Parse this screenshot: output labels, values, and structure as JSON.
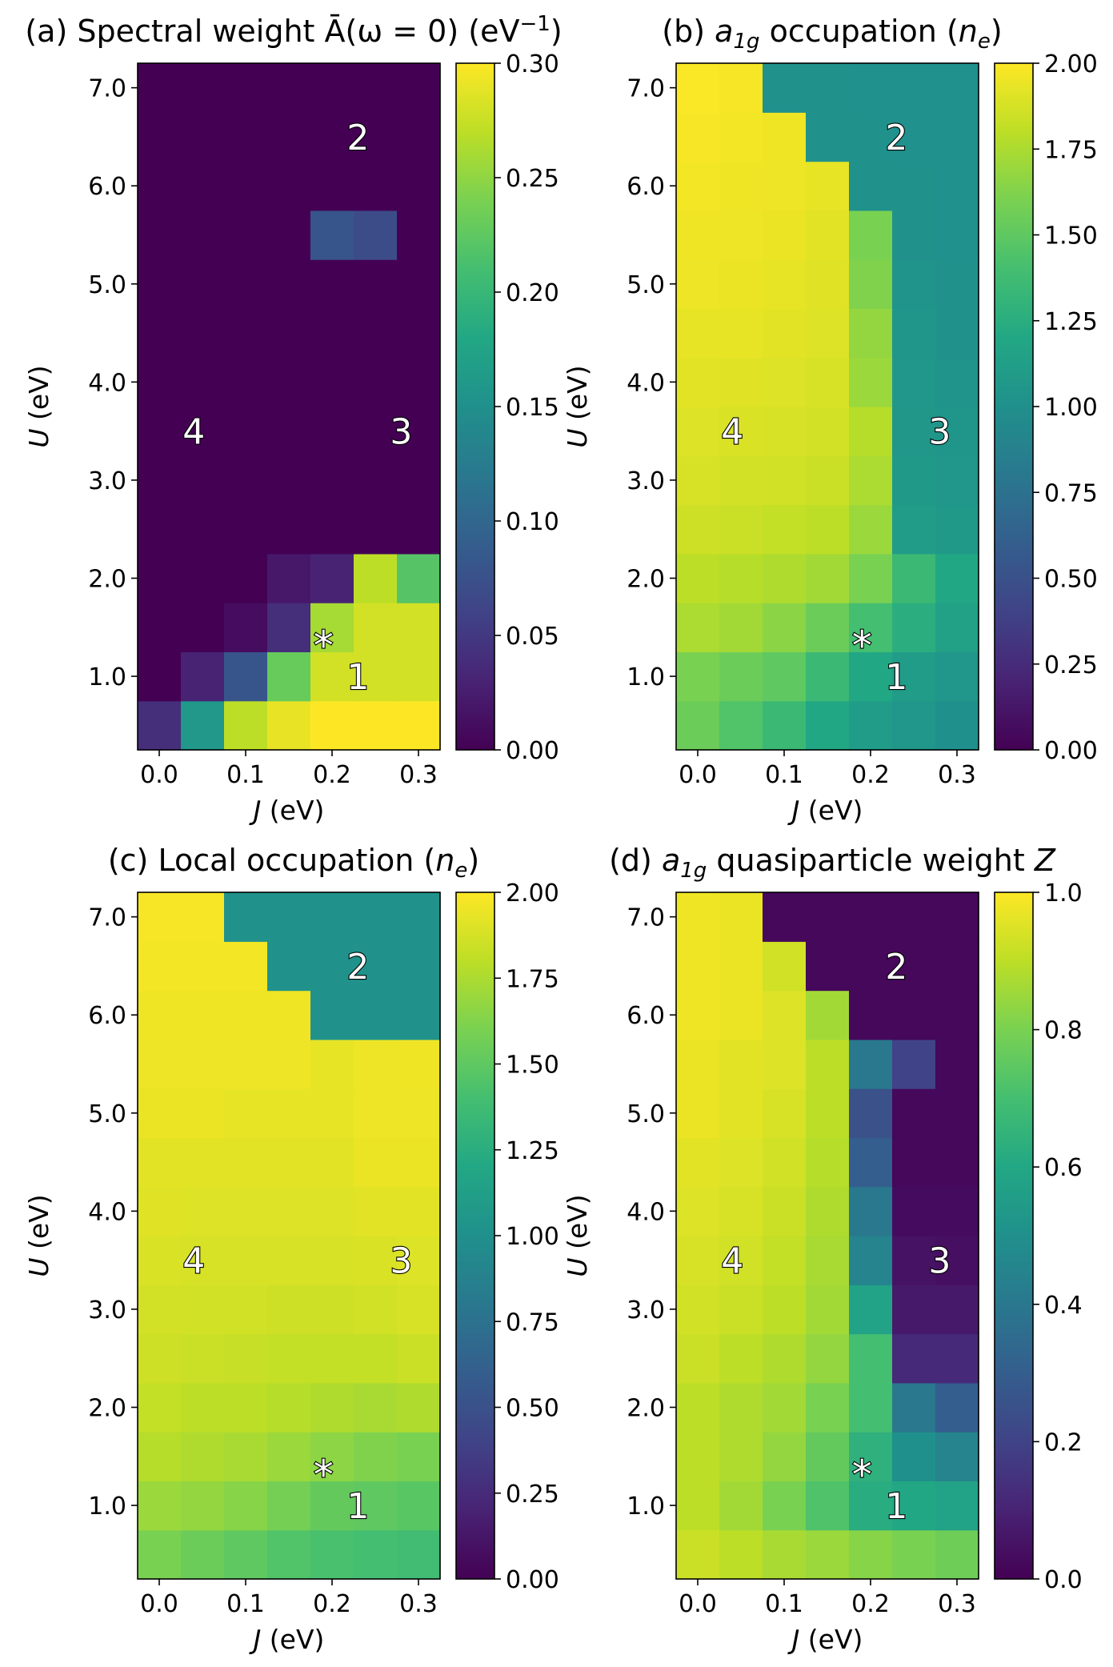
{
  "chart_data": [
    {
      "type": "heatmap",
      "title_prefix": "(a) Spectral weight ",
      "title_symbol": "Ā(ω = 0)",
      "title_suffix": " (eV",
      "title_sup": "−1",
      "title_end": ")",
      "xlabel_var": "J",
      "xlabel_unit": " (eV)",
      "ylabel_var": "U",
      "ylabel_unit": " (eV)",
      "x_values": [
        0.0,
        0.05,
        0.1,
        0.15,
        0.2,
        0.25,
        0.3
      ],
      "y_values": [
        0.5,
        1.0,
        1.5,
        2.0,
        2.5,
        3.0,
        3.5,
        4.0,
        4.5,
        5.0,
        5.5,
        6.0,
        6.5,
        7.0
      ],
      "x_ticks": [
        "0.0",
        "0.1",
        "0.2",
        "0.3"
      ],
      "y_ticks": [
        "1.0",
        "2.0",
        "3.0",
        "4.0",
        "5.0",
        "6.0",
        "7.0"
      ],
      "colorbar_range": [
        0.0,
        0.3
      ],
      "colorbar_ticks": [
        "0.00",
        "0.05",
        "0.10",
        "0.15",
        "0.20",
        "0.25",
        "0.30"
      ],
      "values": [
        [
          0.04,
          0.16,
          0.27,
          0.29,
          0.3,
          0.3,
          0.3
        ],
        [
          0.0,
          0.03,
          0.08,
          0.23,
          0.28,
          0.28,
          0.28
        ],
        [
          0.0,
          0.0,
          0.01,
          0.04,
          0.26,
          0.28,
          0.28
        ],
        [
          0.0,
          0.0,
          0.0,
          0.02,
          0.03,
          0.27,
          0.22
        ],
        [
          0.0,
          0.0,
          0.0,
          0.0,
          0.0,
          0.0,
          0.0
        ],
        [
          0.0,
          0.0,
          0.0,
          0.0,
          0.0,
          0.0,
          0.0
        ],
        [
          0.0,
          0.0,
          0.0,
          0.0,
          0.0,
          0.0,
          0.0
        ],
        [
          0.0,
          0.0,
          0.0,
          0.0,
          0.0,
          0.0,
          0.0
        ],
        [
          0.0,
          0.0,
          0.0,
          0.0,
          0.0,
          0.0,
          0.0
        ],
        [
          0.0,
          0.0,
          0.0,
          0.0,
          0.0,
          0.0,
          0.0
        ],
        [
          0.0,
          0.0,
          0.0,
          0.0,
          0.08,
          0.07,
          0.0
        ],
        [
          0.0,
          0.0,
          0.0,
          0.0,
          0.0,
          0.0,
          0.0
        ],
        [
          0.0,
          0.0,
          0.0,
          0.0,
          0.0,
          0.0,
          0.0
        ],
        [
          0.0,
          0.0,
          0.0,
          0.0,
          0.0,
          0.0,
          0.0
        ]
      ],
      "annotations": [
        {
          "text": "1",
          "x": 0.23,
          "y": 1.0
        },
        {
          "text": "2",
          "x": 0.23,
          "y": 6.5
        },
        {
          "text": "3",
          "x": 0.28,
          "y": 3.5
        },
        {
          "text": "4",
          "x": 0.04,
          "y": 3.5
        },
        {
          "text": "*",
          "x": 0.19,
          "y": 1.4
        }
      ]
    },
    {
      "type": "heatmap",
      "title_prefix": "(b) ",
      "title_symbol": "a",
      "title_sub": "1g",
      "title_suffix": " occupation (",
      "title_var": "n",
      "title_var_sub": "e",
      "title_end": ")",
      "xlabel_var": "J",
      "xlabel_unit": " (eV)",
      "ylabel_var": "U",
      "ylabel_unit": " (eV)",
      "x_values": [
        0.0,
        0.05,
        0.1,
        0.15,
        0.2,
        0.25,
        0.3
      ],
      "y_values": [
        0.5,
        1.0,
        1.5,
        2.0,
        2.5,
        3.0,
        3.5,
        4.0,
        4.5,
        5.0,
        5.5,
        6.0,
        6.5,
        7.0
      ],
      "x_ticks": [
        "0.0",
        "0.1",
        "0.2",
        "0.3"
      ],
      "y_ticks": [
        "1.0",
        "2.0",
        "3.0",
        "4.0",
        "5.0",
        "6.0",
        "7.0"
      ],
      "colorbar_range": [
        0.0,
        2.0
      ],
      "colorbar_ticks": [
        "0.00",
        "0.25",
        "0.50",
        "0.75",
        "1.00",
        "1.25",
        "1.50",
        "1.75",
        "2.00"
      ],
      "values": [
        [
          1.55,
          1.45,
          1.35,
          1.2,
          1.1,
          1.05,
          1.0
        ],
        [
          1.6,
          1.55,
          1.5,
          1.35,
          1.2,
          1.1,
          1.05
        ],
        [
          1.75,
          1.72,
          1.65,
          1.55,
          1.4,
          1.25,
          1.15
        ],
        [
          1.8,
          1.78,
          1.76,
          1.72,
          1.6,
          1.35,
          1.2
        ],
        [
          1.85,
          1.84,
          1.82,
          1.8,
          1.7,
          1.1,
          1.08
        ],
        [
          1.88,
          1.87,
          1.86,
          1.84,
          1.75,
          1.08,
          1.05
        ],
        [
          1.9,
          1.89,
          1.88,
          1.87,
          1.78,
          1.06,
          1.04
        ],
        [
          1.92,
          1.91,
          1.9,
          1.88,
          1.7,
          1.05,
          1.03
        ],
        [
          1.93,
          1.93,
          1.92,
          1.9,
          1.68,
          1.04,
          1.02
        ],
        [
          1.95,
          1.94,
          1.93,
          1.91,
          1.62,
          1.03,
          1.02
        ],
        [
          1.96,
          1.95,
          1.94,
          1.92,
          1.6,
          1.02,
          1.01
        ],
        [
          1.97,
          1.96,
          1.95,
          1.93,
          1.02,
          1.02,
          1.01
        ],
        [
          1.98,
          1.97,
          1.96,
          1.02,
          1.02,
          1.01,
          1.01
        ],
        [
          1.99,
          1.98,
          1.02,
          1.02,
          1.01,
          1.01,
          1.01
        ]
      ],
      "annotations": [
        {
          "text": "1",
          "x": 0.23,
          "y": 1.0
        },
        {
          "text": "2",
          "x": 0.23,
          "y": 6.5
        },
        {
          "text": "3",
          "x": 0.28,
          "y": 3.5
        },
        {
          "text": "4",
          "x": 0.04,
          "y": 3.5
        },
        {
          "text": "*",
          "x": 0.19,
          "y": 1.4
        }
      ]
    },
    {
      "type": "heatmap",
      "title_prefix": "(c) Local occupation (",
      "title_var": "n",
      "title_var_sub": "e",
      "title_end": ")",
      "xlabel_var": "J",
      "xlabel_unit": " (eV)",
      "ylabel_var": "U",
      "ylabel_unit": " (eV)",
      "x_values": [
        0.0,
        0.05,
        0.1,
        0.15,
        0.2,
        0.25,
        0.3
      ],
      "y_values": [
        0.5,
        1.0,
        1.5,
        2.0,
        2.5,
        3.0,
        3.5,
        4.0,
        4.5,
        5.0,
        5.5,
        6.0,
        6.5,
        7.0
      ],
      "x_ticks": [
        "0.0",
        "0.1",
        "0.2",
        "0.3"
      ],
      "y_ticks": [
        "1.0",
        "2.0",
        "3.0",
        "4.0",
        "5.0",
        "6.0",
        "7.0"
      ],
      "colorbar_range": [
        0.0,
        2.0
      ],
      "colorbar_ticks": [
        "0.00",
        "0.25",
        "0.50",
        "0.75",
        "1.00",
        "1.25",
        "1.50",
        "1.75",
        "2.00"
      ],
      "values": [
        [
          1.6,
          1.55,
          1.5,
          1.45,
          1.42,
          1.4,
          1.38
        ],
        [
          1.7,
          1.68,
          1.64,
          1.58,
          1.52,
          1.5,
          1.48
        ],
        [
          1.78,
          1.76,
          1.74,
          1.7,
          1.66,
          1.62,
          1.6
        ],
        [
          1.82,
          1.8,
          1.8,
          1.78,
          1.76,
          1.74,
          1.76
        ],
        [
          1.85,
          1.84,
          1.83,
          1.82,
          1.82,
          1.82,
          1.84
        ],
        [
          1.87,
          1.86,
          1.86,
          1.85,
          1.85,
          1.86,
          1.88
        ],
        [
          1.89,
          1.88,
          1.88,
          1.88,
          1.88,
          1.89,
          1.9
        ],
        [
          1.91,
          1.9,
          1.9,
          1.9,
          1.9,
          1.92,
          1.92
        ],
        [
          1.92,
          1.92,
          1.92,
          1.92,
          1.92,
          1.94,
          1.94
        ],
        [
          1.94,
          1.94,
          1.93,
          1.93,
          1.93,
          1.95,
          1.95
        ],
        [
          1.95,
          1.95,
          1.95,
          1.95,
          1.93,
          1.95,
          1.96
        ],
        [
          1.96,
          1.96,
          1.96,
          1.96,
          1.02,
          1.02,
          1.02
        ],
        [
          1.97,
          1.97,
          1.97,
          1.02,
          1.02,
          1.02,
          1.02
        ],
        [
          1.98,
          1.98,
          1.02,
          1.02,
          1.02,
          1.02,
          1.02
        ]
      ],
      "annotations": [
        {
          "text": "1",
          "x": 0.23,
          "y": 1.0
        },
        {
          "text": "2",
          "x": 0.23,
          "y": 6.5
        },
        {
          "text": "3",
          "x": 0.28,
          "y": 3.5
        },
        {
          "text": "4",
          "x": 0.04,
          "y": 3.5
        },
        {
          "text": "*",
          "x": 0.19,
          "y": 1.4
        }
      ]
    },
    {
      "type": "heatmap",
      "title_prefix": "(d) ",
      "title_symbol": "a",
      "title_sub": "1g",
      "title_suffix": " quasiparticle weight ",
      "title_var": "Z",
      "xlabel_var": "J",
      "xlabel_unit": " (eV)",
      "ylabel_var": "U",
      "ylabel_unit": " (eV)",
      "x_values": [
        0.0,
        0.05,
        0.1,
        0.15,
        0.2,
        0.25,
        0.3
      ],
      "y_values": [
        0.5,
        1.0,
        1.5,
        2.0,
        2.5,
        3.0,
        3.5,
        4.0,
        4.5,
        5.0,
        5.5,
        6.0,
        6.5,
        7.0
      ],
      "x_ticks": [
        "0.0",
        "0.1",
        "0.2",
        "0.3"
      ],
      "y_ticks": [
        "1.0",
        "2.0",
        "3.0",
        "4.0",
        "5.0",
        "6.0",
        "7.0"
      ],
      "colorbar_range": [
        0.0,
        1.0
      ],
      "colorbar_ticks": [
        "0.0",
        "0.2",
        "0.4",
        "0.6",
        "0.8",
        "1.0"
      ],
      "values": [
        [
          0.92,
          0.9,
          0.87,
          0.85,
          0.82,
          0.8,
          0.78
        ],
        [
          0.9,
          0.86,
          0.8,
          0.72,
          0.62,
          0.6,
          0.58
        ],
        [
          0.9,
          0.88,
          0.84,
          0.76,
          0.64,
          0.5,
          0.45
        ],
        [
          0.9,
          0.88,
          0.86,
          0.8,
          0.7,
          0.4,
          0.3
        ],
        [
          0.92,
          0.9,
          0.88,
          0.84,
          0.7,
          0.12,
          0.12
        ],
        [
          0.93,
          0.92,
          0.9,
          0.86,
          0.58,
          0.07,
          0.07
        ],
        [
          0.94,
          0.93,
          0.91,
          0.87,
          0.45,
          0.05,
          0.04
        ],
        [
          0.95,
          0.94,
          0.92,
          0.88,
          0.4,
          0.03,
          0.03
        ],
        [
          0.96,
          0.95,
          0.93,
          0.89,
          0.3,
          0.02,
          0.02
        ],
        [
          0.97,
          0.96,
          0.94,
          0.9,
          0.25,
          0.02,
          0.02
        ],
        [
          0.97,
          0.96,
          0.95,
          0.9,
          0.4,
          0.2,
          0.02
        ],
        [
          0.98,
          0.97,
          0.95,
          0.86,
          0.02,
          0.02,
          0.02
        ],
        [
          0.98,
          0.97,
          0.93,
          0.02,
          0.02,
          0.02,
          0.02
        ],
        [
          0.98,
          0.97,
          0.02,
          0.02,
          0.02,
          0.02,
          0.02
        ]
      ],
      "annotations": [
        {
          "text": "1",
          "x": 0.23,
          "y": 1.0
        },
        {
          "text": "2",
          "x": 0.23,
          "y": 6.5
        },
        {
          "text": "3",
          "x": 0.28,
          "y": 3.5
        },
        {
          "text": "4",
          "x": 0.04,
          "y": 3.5
        },
        {
          "text": "*",
          "x": 0.19,
          "y": 1.4
        }
      ]
    }
  ]
}
